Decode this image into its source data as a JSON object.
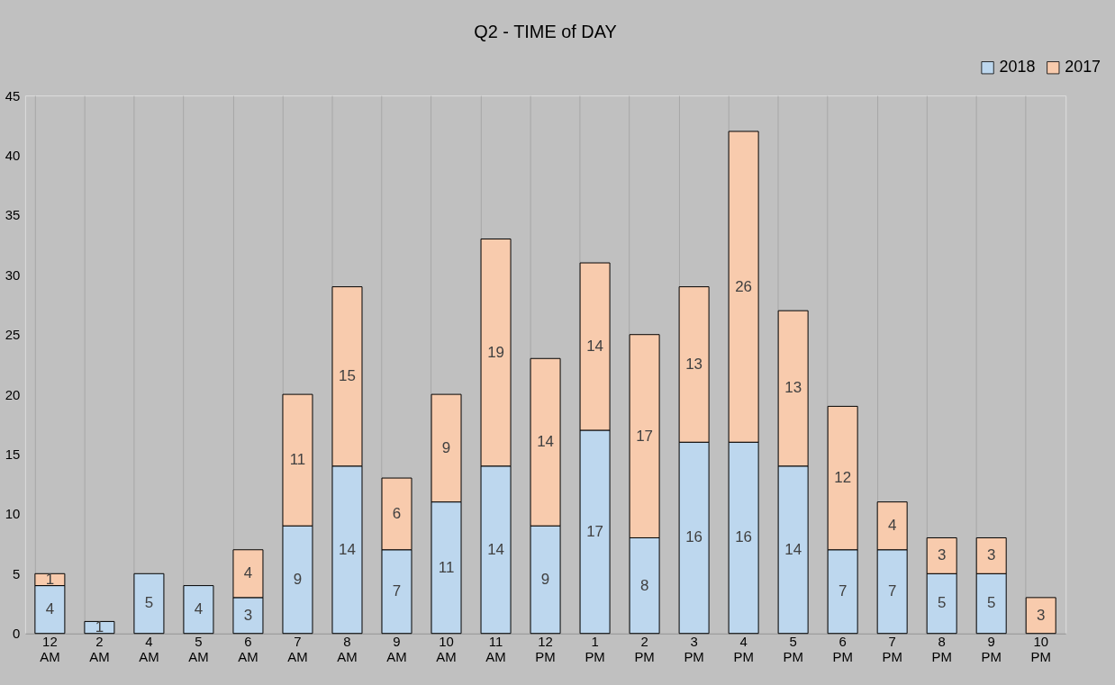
{
  "chart_data": {
    "type": "bar",
    "title": "Q2 - TIME of DAY",
    "categories": [
      "12 AM",
      "2 AM",
      "4 AM",
      "5 AM",
      "6 AM",
      "7 AM",
      "8 AM",
      "9 AM",
      "10 AM",
      "11 AM",
      "12 PM",
      "1 PM",
      "2 PM",
      "3 PM",
      "4 PM",
      "5 PM",
      "6 PM",
      "7 PM",
      "8 PM",
      "9 PM",
      "10 PM"
    ],
    "series": [
      {
        "name": "2018",
        "color": "#bdd7ee",
        "values": [
          4,
          1,
          5,
          4,
          3,
          9,
          14,
          7,
          11,
          14,
          9,
          17,
          8,
          16,
          16,
          14,
          7,
          7,
          5,
          5,
          null
        ]
      },
      {
        "name": "2017",
        "color": "#f8cbad",
        "values": [
          1,
          null,
          null,
          null,
          4,
          11,
          15,
          6,
          9,
          19,
          14,
          14,
          17,
          13,
          26,
          13,
          12,
          4,
          3,
          3,
          3
        ]
      }
    ],
    "stacked": true,
    "data_labels": true,
    "ylim": [
      0,
      45
    ],
    "yticks": [
      0,
      5,
      10,
      15,
      20,
      25,
      30,
      35,
      40,
      45
    ],
    "grid": "x",
    "legend": "top right"
  }
}
